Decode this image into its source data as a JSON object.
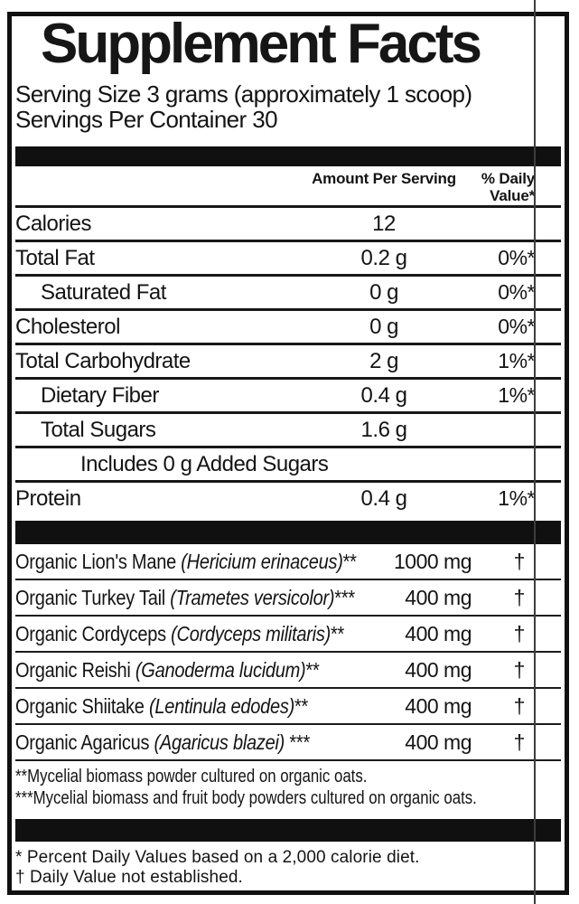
{
  "label": {
    "title": "Supplement Facts",
    "serving": {
      "size": "Serving Size 3 grams (approximately 1 scoop)",
      "per_container": "Servings Per Container 30"
    },
    "columns": {
      "amount": "Amount Per Serving",
      "daily_value": "% Daily Value*"
    }
  },
  "nutrients": [
    {
      "name": "Calories",
      "amount": "12",
      "dv": ""
    },
    {
      "name": "Total Fat",
      "amount": "0.2 g",
      "dv": "0%*"
    },
    {
      "name": "Saturated Fat",
      "amount": "0 g",
      "dv": "0%*"
    },
    {
      "name": "Cholesterol",
      "amount": "0 g",
      "dv": "0%*"
    },
    {
      "name": "Total Carbohydrate",
      "amount": "2 g",
      "dv": "1%*"
    },
    {
      "name": "Dietary Fiber",
      "amount": "0.4 g",
      "dv": "1%*"
    },
    {
      "name": "Total Sugars",
      "amount": "1.6 g",
      "dv": ""
    },
    {
      "name": "Includes 0 g Added Sugars",
      "amount": "",
      "dv": ""
    },
    {
      "name": "Protein",
      "amount": "0.4 g",
      "dv": "1%*"
    }
  ],
  "ingredients": [
    {
      "prefix": "Organic Lion's Mane ",
      "latin": "(Hericium erinaceus)",
      "marks": "**",
      "amount": "1000 mg",
      "dv": "†"
    },
    {
      "prefix": "Organic Turkey Tail ",
      "latin": "(Trametes versicolor)",
      "marks": "***",
      "amount": "400 mg",
      "dv": "†"
    },
    {
      "prefix": "Organic Cordyceps ",
      "latin": "(Cordyceps militaris)",
      "marks": "**",
      "amount": "400 mg",
      "dv": "†"
    },
    {
      "prefix": "Organic Reishi ",
      "latin": "(Ganoderma lucidum)",
      "marks": "**",
      "amount": "400 mg",
      "dv": "†"
    },
    {
      "prefix": "Organic Shiitake ",
      "latin": "(Lentinula edodes)",
      "marks": "**",
      "amount": "400 mg",
      "dv": "†"
    },
    {
      "prefix": "Organic Agaricus ",
      "latin": "(Agaricus blazei) ",
      "marks": "***",
      "amount": "400 mg",
      "dv": "†"
    }
  ],
  "footnotes": {
    "mycelial": "**Mycelial biomass powder cultured on organic oats.",
    "fruit_body": "***Mycelial biomass and fruit body powders cultured on organic oats.",
    "percent_dv": "* Percent Daily Values based on a 2,000 calorie diet.",
    "daily_value": "† Daily Value not established."
  },
  "colors": {
    "text": "#141414",
    "bar": "#101010",
    "border": "#101010",
    "scan_line": "#3d3d3d"
  }
}
